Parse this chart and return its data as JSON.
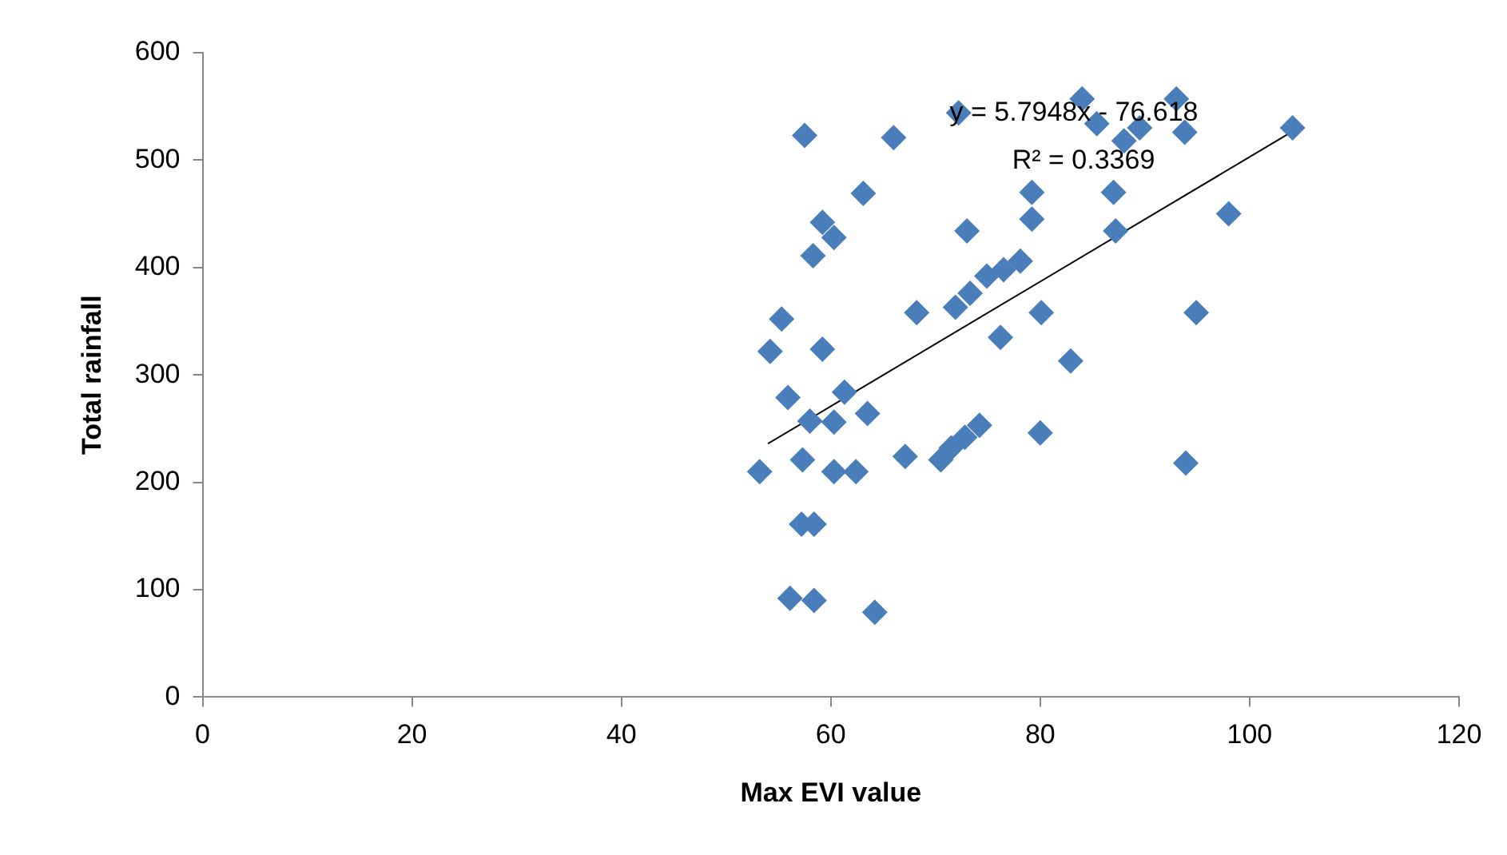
{
  "chart_data": {
    "type": "scatter",
    "xlabel": "Max EVI value",
    "ylabel": "Total rainfall",
    "xlim": [
      0,
      120
    ],
    "xticks": [
      0,
      20,
      40,
      60,
      80,
      100,
      120
    ],
    "ylim": [
      0,
      600
    ],
    "yticks": [
      0,
      100,
      200,
      300,
      400,
      500,
      600
    ],
    "grid": false,
    "legend": false,
    "marker": "diamond",
    "annotations": [
      "y = 5.7948x - 76.618",
      "R² = 0.3369"
    ],
    "series": [
      {
        "color": "#4a7ebb",
        "x": [
          53.2,
          54.2,
          55.3,
          55.9,
          56.1,
          57.3,
          57.2,
          57.5,
          58,
          58.4,
          58.4,
          58.3,
          59.2,
          60.3,
          59.2,
          60.3,
          60.3,
          61.3,
          62.4,
          63.5,
          63.1,
          64.2,
          66,
          68.2,
          67.1,
          70.5,
          71.5,
          72.8,
          74.2,
          72.2,
          71.9,
          73.3,
          74.9,
          76.5,
          78.1,
          73,
          76.2,
          79.2,
          79.2,
          80.1,
          80,
          82.9,
          84,
          85.4,
          88,
          89.5,
          93,
          93.8,
          87,
          87.2,
          98,
          104.1,
          94.9,
          93.9
        ],
        "values": [
          210,
          322,
          352,
          279,
          92,
          221,
          161,
          523,
          257,
          161,
          90,
          411,
          442,
          428,
          324,
          256,
          210,
          284,
          210,
          264,
          469,
          79,
          521,
          358,
          224,
          221,
          232,
          242,
          253,
          544,
          363,
          376,
          392,
          398,
          406,
          434,
          335,
          470,
          445,
          358,
          246,
          313,
          557,
          534,
          518,
          530,
          557,
          526,
          470,
          434,
          450,
          530,
          358,
          218
        ]
      },
      {
        "type": "line",
        "color": "#000000",
        "marker": "none",
        "x": [
          54,
          105
        ],
        "values": [
          236,
          532
        ]
      }
    ]
  }
}
